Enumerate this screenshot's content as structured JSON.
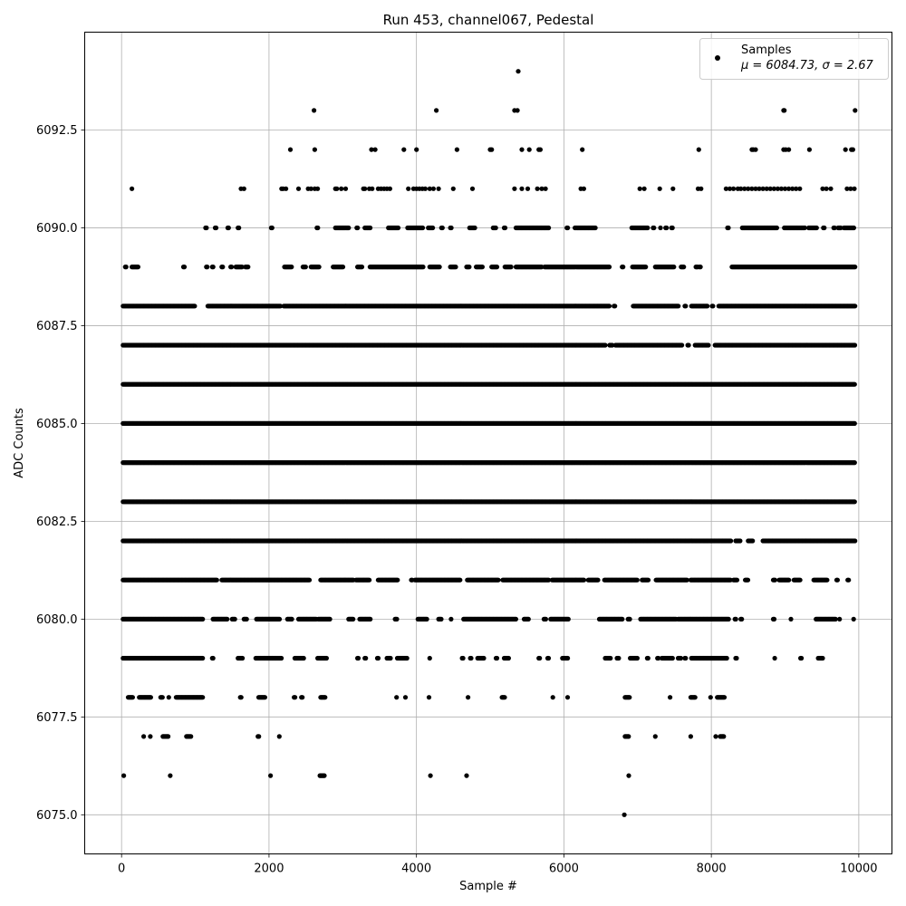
{
  "chart_data": {
    "type": "scatter",
    "title": "Run 453, channel067, Pedestal",
    "xlabel": "Sample #",
    "ylabel": "ADC Counts",
    "xlim": [
      -500,
      10450
    ],
    "ylim": [
      6074.0,
      6095.0
    ],
    "x_ticks": [
      "0",
      "2000",
      "4000",
      "6000",
      "8000",
      "10000"
    ],
    "y_ticks": [
      "6075.0",
      "6077.5",
      "6080.0",
      "6082.5",
      "6085.0",
      "6087.5",
      "6090.0",
      "6092.5"
    ],
    "grid": true,
    "legend_position": "top-right",
    "series": [
      {
        "name": "Samples",
        "label_stats": "μ = 6084.73, σ = 2.67",
        "color": "#000000",
        "marker": "circle",
        "n_points": 10000,
        "mean": 6084.73,
        "std": 2.67,
        "level_coverage": [
          {
            "y": 6094,
            "x": [
              5380
            ]
          },
          {
            "y": 6093,
            "x": [
              2610,
              4270,
              5330,
              5370,
              8980,
              8990,
              9950
            ]
          },
          {
            "y": 6092,
            "x": [
              2290,
              2620,
              3390,
              3440,
              3830,
              4000,
              4550,
              5000,
              5020,
              5430,
              5530,
              5660,
              5680,
              6250,
              7830,
              8550,
              8570,
              8600,
              8980,
              9010,
              9050,
              9330,
              9820,
              9900,
              9920
            ]
          },
          {
            "y": 6091,
            "x": [
              140,
              1620,
              1660,
              2170,
              2190,
              2230,
              2400,
              2530,
              2570,
              2620,
              2660,
              2900,
              2920,
              2980,
              3040,
              3280,
              3300,
              3360,
              3400,
              3480,
              3520,
              3560,
              3600,
              3640,
              3890,
              3960,
              4000,
              4040,
              4080,
              4120,
              4180,
              4230,
              4300,
              4500,
              4760,
              5330,
              5430,
              5510,
              5640,
              5700,
              5750,
              6230,
              6270,
              7030,
              7090,
              7300,
              7480,
              7820,
              7860,
              8200,
              8250,
              8300,
              8360,
              8400,
              8450,
              8500,
              8550,
              8600,
              8650,
              8700,
              8750,
              8800,
              8850,
              8900,
              8950,
              9000,
              9050,
              9100,
              9150,
              9200,
              9510,
              9560,
              9620,
              9840,
              9890,
              9940
            ]
          }
        ]
      }
    ],
    "density_bands": [
      {
        "y": 6090,
        "x_ranges": [
          [
            1140,
            1160
          ],
          [
            1270,
            1290
          ],
          [
            1440,
            1460
          ],
          [
            1580,
            1600
          ],
          [
            2030,
            2050
          ],
          [
            2650,
            2670
          ],
          [
            2900,
            3080
          ],
          [
            3190,
            3210
          ],
          [
            3300,
            3380
          ],
          [
            3620,
            3760
          ],
          [
            3880,
            4090
          ],
          [
            4160,
            4220
          ],
          [
            4340,
            4360
          ],
          [
            4460,
            4480
          ],
          [
            4720,
            4800
          ],
          [
            5040,
            5080
          ],
          [
            5190,
            5210
          ],
          [
            5350,
            5800
          ],
          [
            6040,
            6060
          ],
          [
            6150,
            6430
          ],
          [
            6920,
            7140
          ],
          [
            7210,
            7230
          ],
          [
            7310,
            7320
          ],
          [
            7380,
            7400
          ],
          [
            7460,
            7480
          ],
          [
            8220,
            8240
          ],
          [
            8420,
            8890
          ],
          [
            8990,
            9270
          ],
          [
            9320,
            9430
          ],
          [
            9520,
            9540
          ],
          [
            9660,
            9680
          ],
          [
            9720,
            9760
          ],
          [
            9800,
            9940
          ]
        ]
      },
      {
        "y": 6089,
        "x_ranges": [
          [
            50,
            70
          ],
          [
            140,
            230
          ],
          [
            840,
            860
          ],
          [
            1150,
            1170
          ],
          [
            1230,
            1250
          ],
          [
            1360,
            1380
          ],
          [
            1480,
            1500
          ],
          [
            1550,
            1640
          ],
          [
            1680,
            1720
          ],
          [
            2210,
            2310
          ],
          [
            2460,
            2500
          ],
          [
            2570,
            2680
          ],
          [
            2870,
            3010
          ],
          [
            3200,
            3270
          ],
          [
            3370,
            4100
          ],
          [
            4180,
            4320
          ],
          [
            4460,
            4540
          ],
          [
            4680,
            4720
          ],
          [
            4810,
            4900
          ],
          [
            5020,
            5100
          ],
          [
            5200,
            5290
          ],
          [
            5350,
            5700
          ],
          [
            5740,
            6620
          ],
          [
            6790,
            6810
          ],
          [
            6930,
            7110
          ],
          [
            7240,
            7500
          ],
          [
            7590,
            7630
          ],
          [
            7790,
            7820
          ],
          [
            7840,
            7860
          ],
          [
            8280,
            9950
          ]
        ]
      },
      {
        "y": 6088,
        "x_ranges": [
          [
            20,
            1000
          ],
          [
            1170,
            2160
          ],
          [
            2200,
            6620
          ],
          [
            6680,
            6700
          ],
          [
            6940,
            7560
          ],
          [
            7640,
            7660
          ],
          [
            7730,
            7950
          ],
          [
            8010,
            8030
          ],
          [
            8100,
            9950
          ]
        ]
      },
      {
        "y": 6087,
        "x_ranges": [
          [
            20,
            6570
          ],
          [
            6620,
            6660
          ],
          [
            6700,
            7600
          ],
          [
            7680,
            7700
          ],
          [
            7780,
            7960
          ],
          [
            8050,
            9950
          ]
        ]
      },
      {
        "y": 6086,
        "x_ranges": [
          [
            20,
            9950
          ]
        ]
      },
      {
        "y": 6085,
        "x_ranges": [
          [
            20,
            9950
          ]
        ]
      },
      {
        "y": 6084,
        "x_ranges": [
          [
            20,
            9950
          ]
        ]
      },
      {
        "y": 6083,
        "x_ranges": [
          [
            20,
            9950
          ]
        ]
      },
      {
        "y": 6082,
        "x_ranges": [
          [
            20,
            8270
          ],
          [
            8330,
            8390
          ],
          [
            8500,
            8560
          ],
          [
            8700,
            9950
          ]
        ]
      },
      {
        "y": 6081,
        "x_ranges": [
          [
            20,
            1300
          ],
          [
            1360,
            2550
          ],
          [
            2700,
            3150
          ],
          [
            3180,
            3360
          ],
          [
            3480,
            3750
          ],
          [
            3930,
            3950
          ],
          [
            3980,
            4600
          ],
          [
            4690,
            5120
          ],
          [
            5170,
            5800
          ],
          [
            5840,
            6280
          ],
          [
            6330,
            6470
          ],
          [
            6550,
            7000
          ],
          [
            7060,
            7150
          ],
          [
            7250,
            7670
          ],
          [
            7720,
            8260
          ],
          [
            8300,
            8350
          ],
          [
            8460,
            8500
          ],
          [
            8840,
            8870
          ],
          [
            8920,
            9060
          ],
          [
            9120,
            9210
          ],
          [
            9390,
            9570
          ],
          [
            9700,
            9720
          ],
          [
            9850,
            9870
          ]
        ]
      },
      {
        "y": 6080,
        "x_ranges": [
          [
            20,
            1110
          ],
          [
            1240,
            1440
          ],
          [
            1500,
            1540
          ],
          [
            1660,
            1700
          ],
          [
            1830,
            2150
          ],
          [
            2250,
            2310
          ],
          [
            2400,
            2650
          ],
          [
            2670,
            2830
          ],
          [
            3080,
            3140
          ],
          [
            3230,
            3380
          ],
          [
            3710,
            3740
          ],
          [
            4020,
            4150
          ],
          [
            4300,
            4340
          ],
          [
            4470,
            4480
          ],
          [
            4640,
            5350
          ],
          [
            5460,
            5520
          ],
          [
            5730,
            5760
          ],
          [
            5820,
            6060
          ],
          [
            6480,
            6800
          ],
          [
            6870,
            6900
          ],
          [
            7040,
            7520
          ],
          [
            7550,
            8240
          ],
          [
            8320,
            8340
          ],
          [
            8400,
            8420
          ],
          [
            8840,
            8860
          ],
          [
            9080,
            9090
          ],
          [
            9420,
            9690
          ],
          [
            9740,
            9750
          ],
          [
            9930,
            9940
          ]
        ]
      },
      {
        "y": 6079,
        "x_ranges": [
          [
            20,
            1100
          ],
          [
            1230,
            1250
          ],
          [
            1580,
            1640
          ],
          [
            1820,
            2170
          ],
          [
            2350,
            2470
          ],
          [
            2660,
            2780
          ],
          [
            3200,
            3220
          ],
          [
            3300,
            3320
          ],
          [
            3470,
            3490
          ],
          [
            3600,
            3650
          ],
          [
            3740,
            3880
          ],
          [
            4180,
            4190
          ],
          [
            4620,
            4640
          ],
          [
            4730,
            4750
          ],
          [
            4830,
            4920
          ],
          [
            5080,
            5100
          ],
          [
            5190,
            5250
          ],
          [
            5660,
            5680
          ],
          [
            5780,
            5800
          ],
          [
            5980,
            6060
          ],
          [
            6560,
            6640
          ],
          [
            6720,
            6750
          ],
          [
            6900,
            7000
          ],
          [
            7130,
            7150
          ],
          [
            7270,
            7290
          ],
          [
            7330,
            7480
          ],
          [
            7550,
            7590
          ],
          [
            7640,
            7660
          ],
          [
            7730,
            8210
          ],
          [
            8330,
            8350
          ],
          [
            8860,
            8870
          ],
          [
            9210,
            9230
          ],
          [
            9450,
            9510
          ]
        ]
      },
      {
        "y": 6078,
        "x_ranges": [
          [
            90,
            150
          ],
          [
            240,
            400
          ],
          [
            530,
            560
          ],
          [
            640,
            650
          ],
          [
            740,
            1100
          ],
          [
            1610,
            1630
          ],
          [
            1860,
            1950
          ],
          [
            2340,
            2360
          ],
          [
            2440,
            2460
          ],
          [
            2700,
            2760
          ],
          [
            3730,
            3740
          ],
          [
            3850,
            3860
          ],
          [
            4170,
            4180
          ],
          [
            4700,
            4710
          ],
          [
            5160,
            5200
          ],
          [
            5850,
            5860
          ],
          [
            6050,
            6060
          ],
          [
            6830,
            6890
          ],
          [
            7440,
            7450
          ],
          [
            7720,
            7780
          ],
          [
            7990,
            8000
          ],
          [
            8080,
            8180
          ]
        ]
      },
      {
        "y": 6077,
        "x_ranges": [
          [
            300,
            310
          ],
          [
            390,
            400
          ],
          [
            560,
            640
          ],
          [
            880,
            940
          ],
          [
            1850,
            1870
          ],
          [
            2140,
            2150
          ],
          [
            6830,
            6880
          ],
          [
            7240,
            7250
          ],
          [
            7720,
            7730
          ],
          [
            8060,
            8070
          ],
          [
            8120,
            8170
          ]
        ]
      },
      {
        "y": 6076,
        "x_ranges": [
          [
            30,
            40
          ],
          [
            660,
            670
          ],
          [
            2020,
            2030
          ],
          [
            2690,
            2760
          ],
          [
            4190,
            4200
          ],
          [
            4680,
            4690
          ],
          [
            6880,
            6890
          ]
        ]
      },
      {
        "y": 6075,
        "x_ranges": [
          [
            6820,
            6830
          ]
        ]
      }
    ]
  }
}
